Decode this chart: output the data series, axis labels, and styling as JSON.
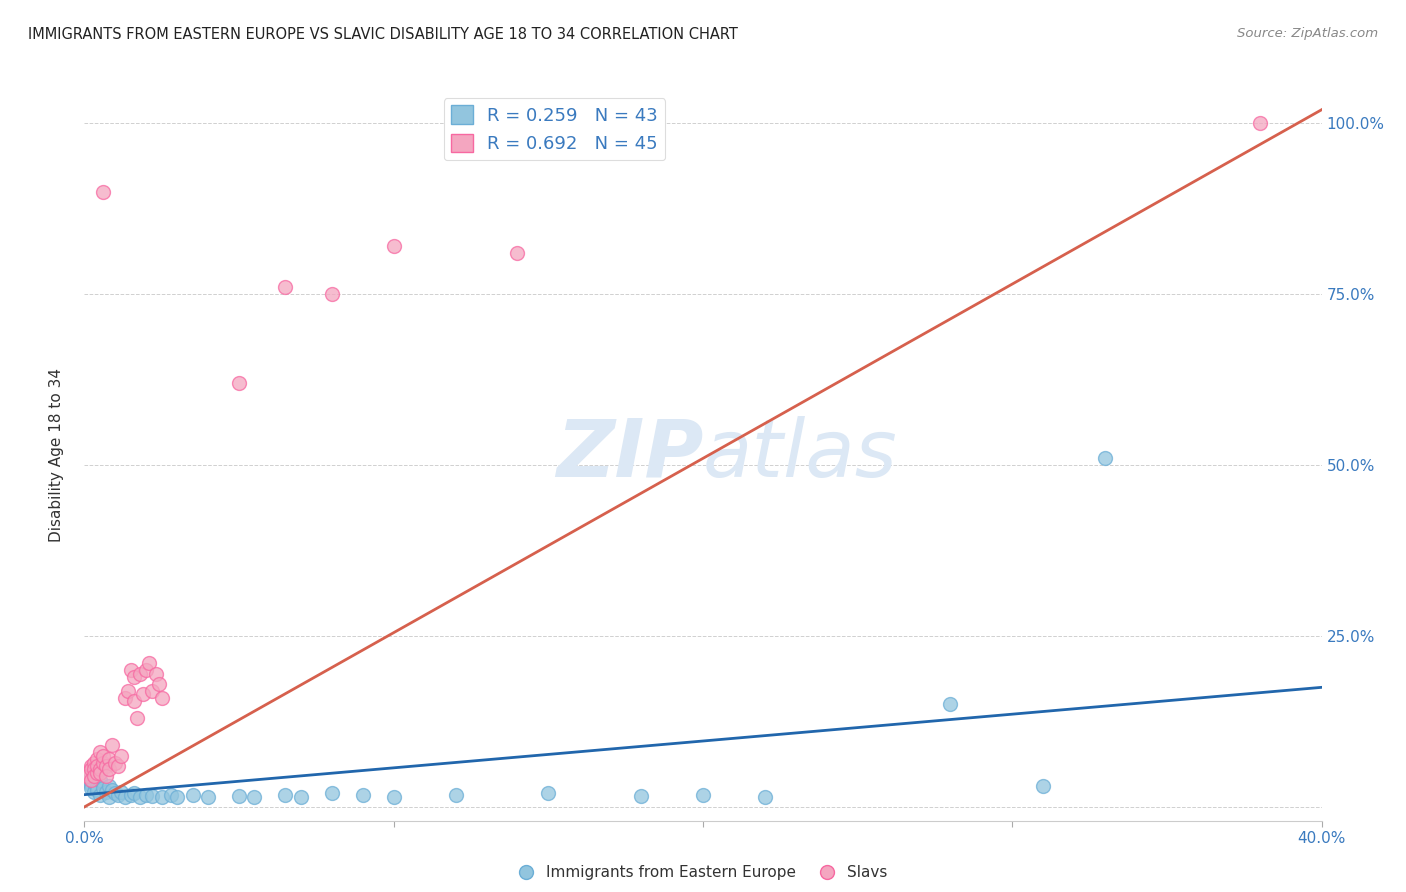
{
  "title": "IMMIGRANTS FROM EASTERN EUROPE VS SLAVIC DISABILITY AGE 18 TO 34 CORRELATION CHART",
  "source": "Source: ZipAtlas.com",
  "ylabel": "Disability Age 18 to 34",
  "legend_label1": "Immigrants from Eastern Europe",
  "legend_label2": "Slavs",
  "watermark_zip": "ZIP",
  "watermark_atlas": "atlas",
  "blue_color": "#92c5de",
  "pink_color": "#f4a6c0",
  "blue_edge": "#6baed6",
  "pink_edge": "#f768a1",
  "line_blue": "#2166ac",
  "line_pink": "#d6604d",
  "xlim": [
    0.0,
    0.4
  ],
  "ylim": [
    -0.02,
    1.05
  ],
  "blue_scatter": [
    [
      0.001,
      0.038
    ],
    [
      0.002,
      0.032
    ],
    [
      0.002,
      0.028
    ],
    [
      0.003,
      0.035
    ],
    [
      0.003,
      0.022
    ],
    [
      0.004,
      0.03
    ],
    [
      0.004,
      0.025
    ],
    [
      0.005,
      0.04
    ],
    [
      0.005,
      0.018
    ],
    [
      0.006,
      0.028
    ],
    [
      0.007,
      0.022
    ],
    [
      0.008,
      0.03
    ],
    [
      0.008,
      0.015
    ],
    [
      0.009,
      0.025
    ],
    [
      0.01,
      0.02
    ],
    [
      0.011,
      0.018
    ],
    [
      0.012,
      0.022
    ],
    [
      0.013,
      0.015
    ],
    [
      0.015,
      0.018
    ],
    [
      0.016,
      0.02
    ],
    [
      0.018,
      0.015
    ],
    [
      0.02,
      0.018
    ],
    [
      0.022,
      0.016
    ],
    [
      0.025,
      0.015
    ],
    [
      0.028,
      0.018
    ],
    [
      0.03,
      0.015
    ],
    [
      0.035,
      0.018
    ],
    [
      0.04,
      0.015
    ],
    [
      0.05,
      0.016
    ],
    [
      0.055,
      0.015
    ],
    [
      0.065,
      0.018
    ],
    [
      0.07,
      0.015
    ],
    [
      0.08,
      0.02
    ],
    [
      0.09,
      0.018
    ],
    [
      0.1,
      0.015
    ],
    [
      0.12,
      0.018
    ],
    [
      0.15,
      0.02
    ],
    [
      0.18,
      0.016
    ],
    [
      0.2,
      0.018
    ],
    [
      0.22,
      0.015
    ],
    [
      0.28,
      0.15
    ],
    [
      0.31,
      0.03
    ],
    [
      0.33,
      0.51
    ]
  ],
  "pink_scatter": [
    [
      0.001,
      0.05
    ],
    [
      0.001,
      0.045
    ],
    [
      0.002,
      0.06
    ],
    [
      0.002,
      0.055
    ],
    [
      0.002,
      0.04
    ],
    [
      0.003,
      0.065
    ],
    [
      0.003,
      0.055
    ],
    [
      0.003,
      0.045
    ],
    [
      0.004,
      0.07
    ],
    [
      0.004,
      0.05
    ],
    [
      0.004,
      0.06
    ],
    [
      0.005,
      0.08
    ],
    [
      0.005,
      0.055
    ],
    [
      0.005,
      0.05
    ],
    [
      0.006,
      0.065
    ],
    [
      0.006,
      0.075
    ],
    [
      0.007,
      0.06
    ],
    [
      0.007,
      0.045
    ],
    [
      0.008,
      0.07
    ],
    [
      0.008,
      0.055
    ],
    [
      0.009,
      0.09
    ],
    [
      0.01,
      0.065
    ],
    [
      0.011,
      0.06
    ],
    [
      0.012,
      0.075
    ],
    [
      0.013,
      0.16
    ],
    [
      0.014,
      0.17
    ],
    [
      0.015,
      0.2
    ],
    [
      0.016,
      0.19
    ],
    [
      0.016,
      0.155
    ],
    [
      0.017,
      0.13
    ],
    [
      0.018,
      0.195
    ],
    [
      0.019,
      0.165
    ],
    [
      0.02,
      0.2
    ],
    [
      0.021,
      0.21
    ],
    [
      0.022,
      0.17
    ],
    [
      0.023,
      0.195
    ],
    [
      0.024,
      0.18
    ],
    [
      0.025,
      0.16
    ],
    [
      0.006,
      0.9
    ],
    [
      0.05,
      0.62
    ],
    [
      0.065,
      0.76
    ],
    [
      0.08,
      0.75
    ],
    [
      0.1,
      0.82
    ],
    [
      0.14,
      0.81
    ],
    [
      0.38,
      1.0
    ]
  ],
  "blue_line_x": [
    0.0,
    0.4
  ],
  "blue_line_y": [
    0.018,
    0.175
  ],
  "pink_line_x": [
    0.0,
    0.4
  ],
  "pink_line_y": [
    0.0,
    1.02
  ]
}
